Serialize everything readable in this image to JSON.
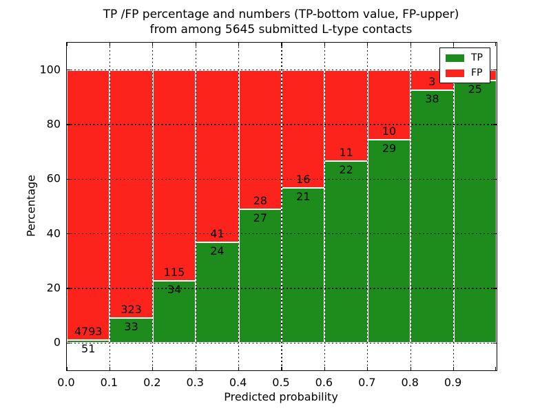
{
  "title": {
    "line1": "TP /FP percentage and numbers (TP-bottom value, FP-upper)",
    "line2": "from among 5645 submitted L-type contacts"
  },
  "axes": {
    "ylabel": "Percentage",
    "xlabel": "Predicted probability",
    "yticks": [
      {
        "value": 0,
        "label": "0"
      },
      {
        "value": 20,
        "label": "20"
      },
      {
        "value": 40,
        "label": "40"
      },
      {
        "value": 60,
        "label": "60"
      },
      {
        "value": 80,
        "label": "80"
      },
      {
        "value": 100,
        "label": "100"
      }
    ],
    "xticks": [
      {
        "value": 0.0,
        "label": "0.0"
      },
      {
        "value": 0.1,
        "label": "0.1"
      },
      {
        "value": 0.2,
        "label": "0.2"
      },
      {
        "value": 0.3,
        "label": "0.3"
      },
      {
        "value": 0.4,
        "label": "0.4"
      },
      {
        "value": 0.5,
        "label": "0.5"
      },
      {
        "value": 0.6,
        "label": "0.6"
      },
      {
        "value": 0.7,
        "label": "0.7"
      },
      {
        "value": 0.8,
        "label": "0.8"
      },
      {
        "value": 0.9,
        "label": "0.9"
      }
    ]
  },
  "legend": {
    "items": [
      {
        "label": "TP",
        "color": "#1d8c1d"
      },
      {
        "label": "FP",
        "color": "#fb231c"
      }
    ]
  },
  "colors": {
    "tp": "#1d8c1d",
    "fp": "#fb231c",
    "bar_edge": "#ffffff",
    "grid": "#000000",
    "background": "#ffffff",
    "text": "#000000"
  },
  "chart_data": {
    "type": "bar",
    "stacked": true,
    "unit": "percent",
    "title": "TP /FP percentage and numbers (TP-bottom value, FP-upper) from among 5645 submitted L-type contacts",
    "xlabel": "Predicted probability",
    "ylabel": "Percentage",
    "xlim": [
      0.0,
      1.0
    ],
    "ylim": [
      -10,
      110
    ],
    "grid": "dotted, horizontal every 20 and vertical every 0.1, drawn over bars",
    "legend_position": "upper right",
    "bin_width": 0.1,
    "series": [
      {
        "name": "TP",
        "color": "#1d8c1d",
        "position": "bottom"
      },
      {
        "name": "FP",
        "color": "#fb231c",
        "position": "top"
      }
    ],
    "bins": [
      {
        "x_start": 0.0,
        "x_end": 0.1,
        "tp_count": 51,
        "fp_count": 4793,
        "tp_pct": 1.05,
        "fp_pct": 98.95
      },
      {
        "x_start": 0.1,
        "x_end": 0.2,
        "tp_count": 33,
        "fp_count": 323,
        "tp_pct": 9.27,
        "fp_pct": 90.73
      },
      {
        "x_start": 0.2,
        "x_end": 0.3,
        "tp_count": 34,
        "fp_count": 115,
        "tp_pct": 22.82,
        "fp_pct": 77.18
      },
      {
        "x_start": 0.3,
        "x_end": 0.4,
        "tp_count": 24,
        "fp_count": 41,
        "tp_pct": 36.92,
        "fp_pct": 63.08
      },
      {
        "x_start": 0.4,
        "x_end": 0.5,
        "tp_count": 27,
        "fp_count": 28,
        "tp_pct": 49.09,
        "fp_pct": 50.91
      },
      {
        "x_start": 0.5,
        "x_end": 0.6,
        "tp_count": 21,
        "fp_count": 16,
        "tp_pct": 56.76,
        "fp_pct": 43.24
      },
      {
        "x_start": 0.6,
        "x_end": 0.7,
        "tp_count": 22,
        "fp_count": 11,
        "tp_pct": 66.67,
        "fp_pct": 33.33
      },
      {
        "x_start": 0.7,
        "x_end": 0.8,
        "tp_count": 29,
        "fp_count": 10,
        "tp_pct": 74.36,
        "fp_pct": 25.64
      },
      {
        "x_start": 0.8,
        "x_end": 0.9,
        "tp_count": 38,
        "fp_count": 3,
        "tp_pct": 92.68,
        "fp_pct": 7.32
      },
      {
        "x_start": 0.9,
        "x_end": 1.0,
        "tp_count": 25,
        "fp_count": null,
        "tp_pct": 96.15,
        "fp_pct": 3.85
      }
    ]
  }
}
